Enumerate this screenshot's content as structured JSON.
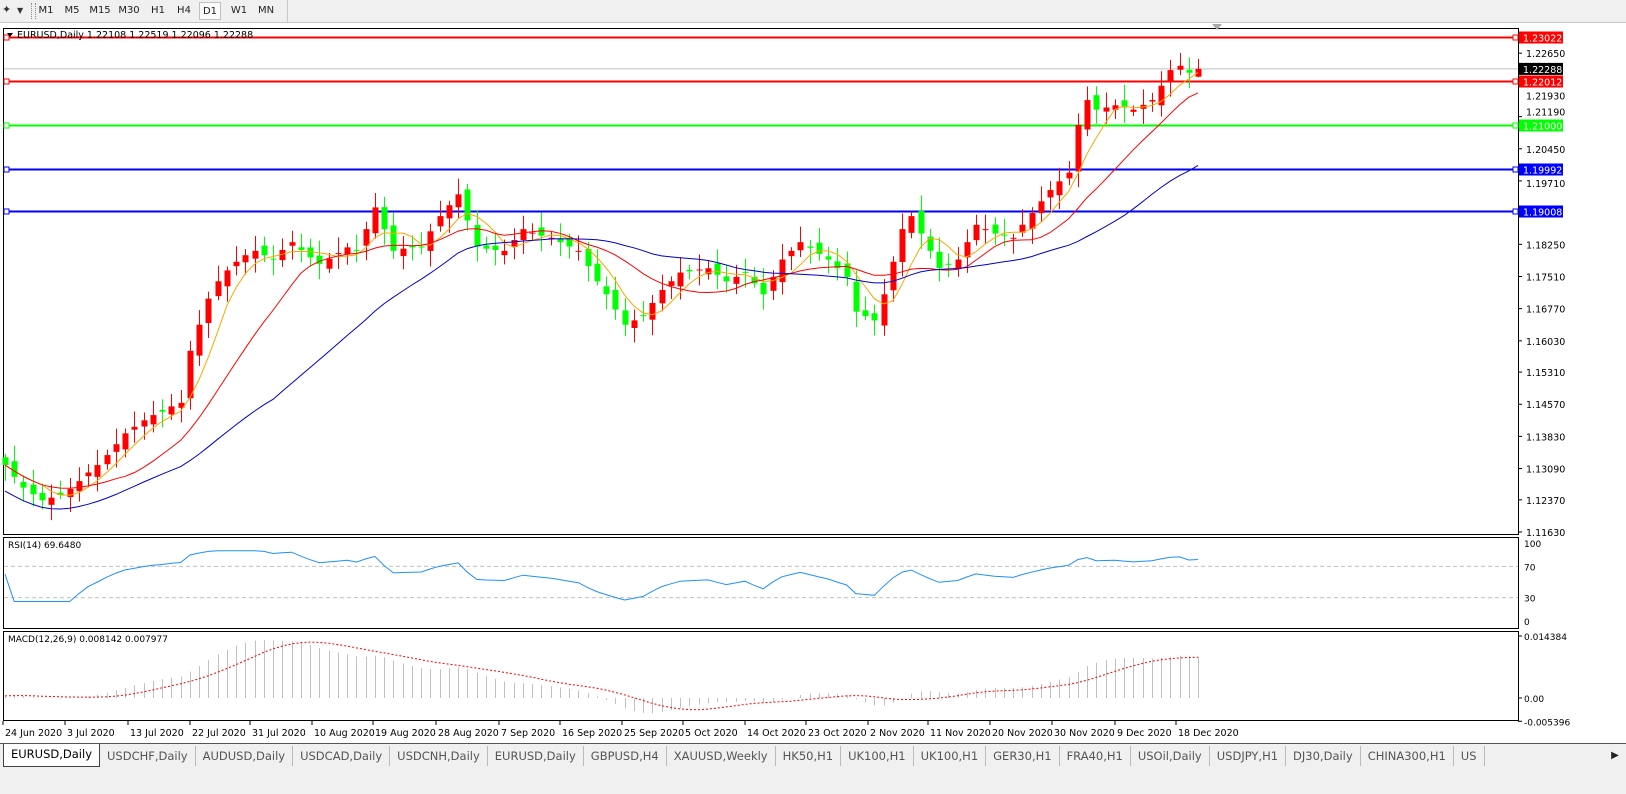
{
  "toolbar": {
    "draw_tools_icon": "line-tools-icon",
    "timeframes": [
      "M1",
      "M5",
      "M15",
      "M30",
      "H1",
      "H4",
      "D1",
      "W1",
      "MN"
    ],
    "active_timeframe": "D1"
  },
  "chart": {
    "header": "EURUSD,Daily  1.22108 1.22519 1.22096 1.22288",
    "current_price": "1.22288",
    "levels": [
      {
        "value": 1.23022,
        "label": "1.23022",
        "color": "#ff0000"
      },
      {
        "value": 1.22012,
        "label": "1.22012",
        "color": "#ff0000"
      },
      {
        "value": 1.21,
        "label": "1.21000",
        "color": "#00ff00"
      },
      {
        "value": 1.19992,
        "label": "1.19992",
        "color": "#0000ff"
      },
      {
        "value": 1.19008,
        "label": "1.19008",
        "color": "#0000ff"
      }
    ],
    "price_ticks": [
      "1.22650",
      "1.21930",
      "1.21190",
      "1.20450",
      "1.19710",
      "1.18250",
      "1.17510",
      "1.16770",
      "1.16030",
      "1.15310",
      "1.14570",
      "1.13830",
      "1.13090",
      "1.12370",
      "1.11630"
    ],
    "colors": {
      "up_candle": "#ff0000",
      "down_candle": "#00ff00",
      "ma_fast": "#ffa500",
      "ma_mid": "#ff0000",
      "ma_slow": "#0000cc"
    }
  },
  "rsi": {
    "header": "RSI(14) 69.6480",
    "ticks": [
      "100",
      "70",
      "30",
      "0"
    ],
    "color": "#1e90ff"
  },
  "macd": {
    "header": "MACD(12,26,9) 0.008142 0.007977",
    "ticks": [
      "0.014384",
      "0.00",
      "-0.005396"
    ]
  },
  "date_axis": {
    "labels": [
      "24 Jun 2020",
      "3 Jul 2020",
      "13 Jul 2020",
      "22 Jul 2020",
      "31 Jul 2020",
      "10 Aug 2020",
      "19 Aug 2020",
      "28 Aug 2020",
      "7 Sep 2020",
      "16 Sep 2020",
      "25 Sep 2020",
      "5 Oct 2020",
      "14 Oct 2020",
      "23 Oct 2020",
      "2 Nov 2020",
      "11 Nov 2020",
      "20 Nov 2020",
      "30 Nov 2020",
      "9 Dec 2020",
      "18 Dec 2020"
    ]
  },
  "tabs": [
    "EURUSD,Daily",
    "USDCHF,Daily",
    "AUDUSD,Daily",
    "USDCAD,Daily",
    "USDCNH,Daily",
    "EURUSD,Daily",
    "GBPUSD,H4",
    "XAUUSD,Weekly",
    "HK50,H1",
    "UK100,H1",
    "UK100,H1",
    "GER30,H1",
    "FRA40,H1",
    "USOil,Daily",
    "USDJPY,H1",
    "DJ30,Daily",
    "CHINA300,H1",
    "US"
  ],
  "active_tab": 0,
  "chart_data": {
    "type": "candlestick",
    "symbol": "EURUSD",
    "timeframe": "Daily",
    "last_bar": {
      "open": 1.22108,
      "high": 1.22519,
      "low": 1.22096,
      "close": 1.22288
    },
    "ylim": [
      1.1163,
      1.23022
    ],
    "closes": [
      1.1317,
      1.129,
      1.1265,
      1.125,
      1.1236,
      1.1242,
      1.1248,
      1.1262,
      1.128,
      1.13,
      1.1317,
      1.134,
      1.1365,
      1.139,
      1.1405,
      1.142,
      1.1432,
      1.144,
      1.1452,
      1.146,
      1.158,
      1.164,
      1.17,
      1.174,
      1.1765,
      1.1785,
      1.18,
      1.181,
      1.18,
      1.179,
      1.1812,
      1.183,
      1.1812,
      1.1795,
      1.178,
      1.1792,
      1.1805,
      1.1818,
      1.181,
      1.186,
      1.191,
      1.186,
      1.181,
      1.1815,
      1.1818,
      1.182,
      1.1855,
      1.189,
      1.1915,
      1.194,
      1.188,
      1.182,
      1.1815,
      1.1812,
      1.181,
      1.1835,
      1.186,
      1.1852,
      1.1845,
      1.184,
      1.183,
      1.182,
      1.181,
      1.1775,
      1.174,
      1.171,
      1.1675,
      1.164,
      1.165,
      1.166,
      1.169,
      1.172,
      1.174,
      1.176,
      1.1763,
      1.1767,
      1.177,
      1.1755,
      1.174,
      1.175,
      1.176,
      1.1735,
      1.171,
      1.175,
      1.179,
      1.181,
      1.183,
      1.1817,
      1.1803,
      1.179,
      1.177,
      1.175,
      1.167,
      1.166,
      1.165,
      1.171,
      1.1785,
      1.186,
      1.189,
      1.185,
      1.181,
      1.177,
      1.178,
      1.179,
      1.183,
      1.187,
      1.186,
      1.185,
      1.1845,
      1.184,
      1.187,
      1.1897,
      1.1924,
      1.195,
      1.197,
      1.199,
      1.21,
      1.2157,
      1.2135,
      1.214,
      1.2145,
      1.214,
      1.2135,
      1.2146,
      1.2157,
      1.219,
      1.2226,
      1.2236,
      1.222,
      1.2229
    ],
    "indicators": [
      "RSI(14)",
      "MACD(12,26,9)"
    ]
  }
}
